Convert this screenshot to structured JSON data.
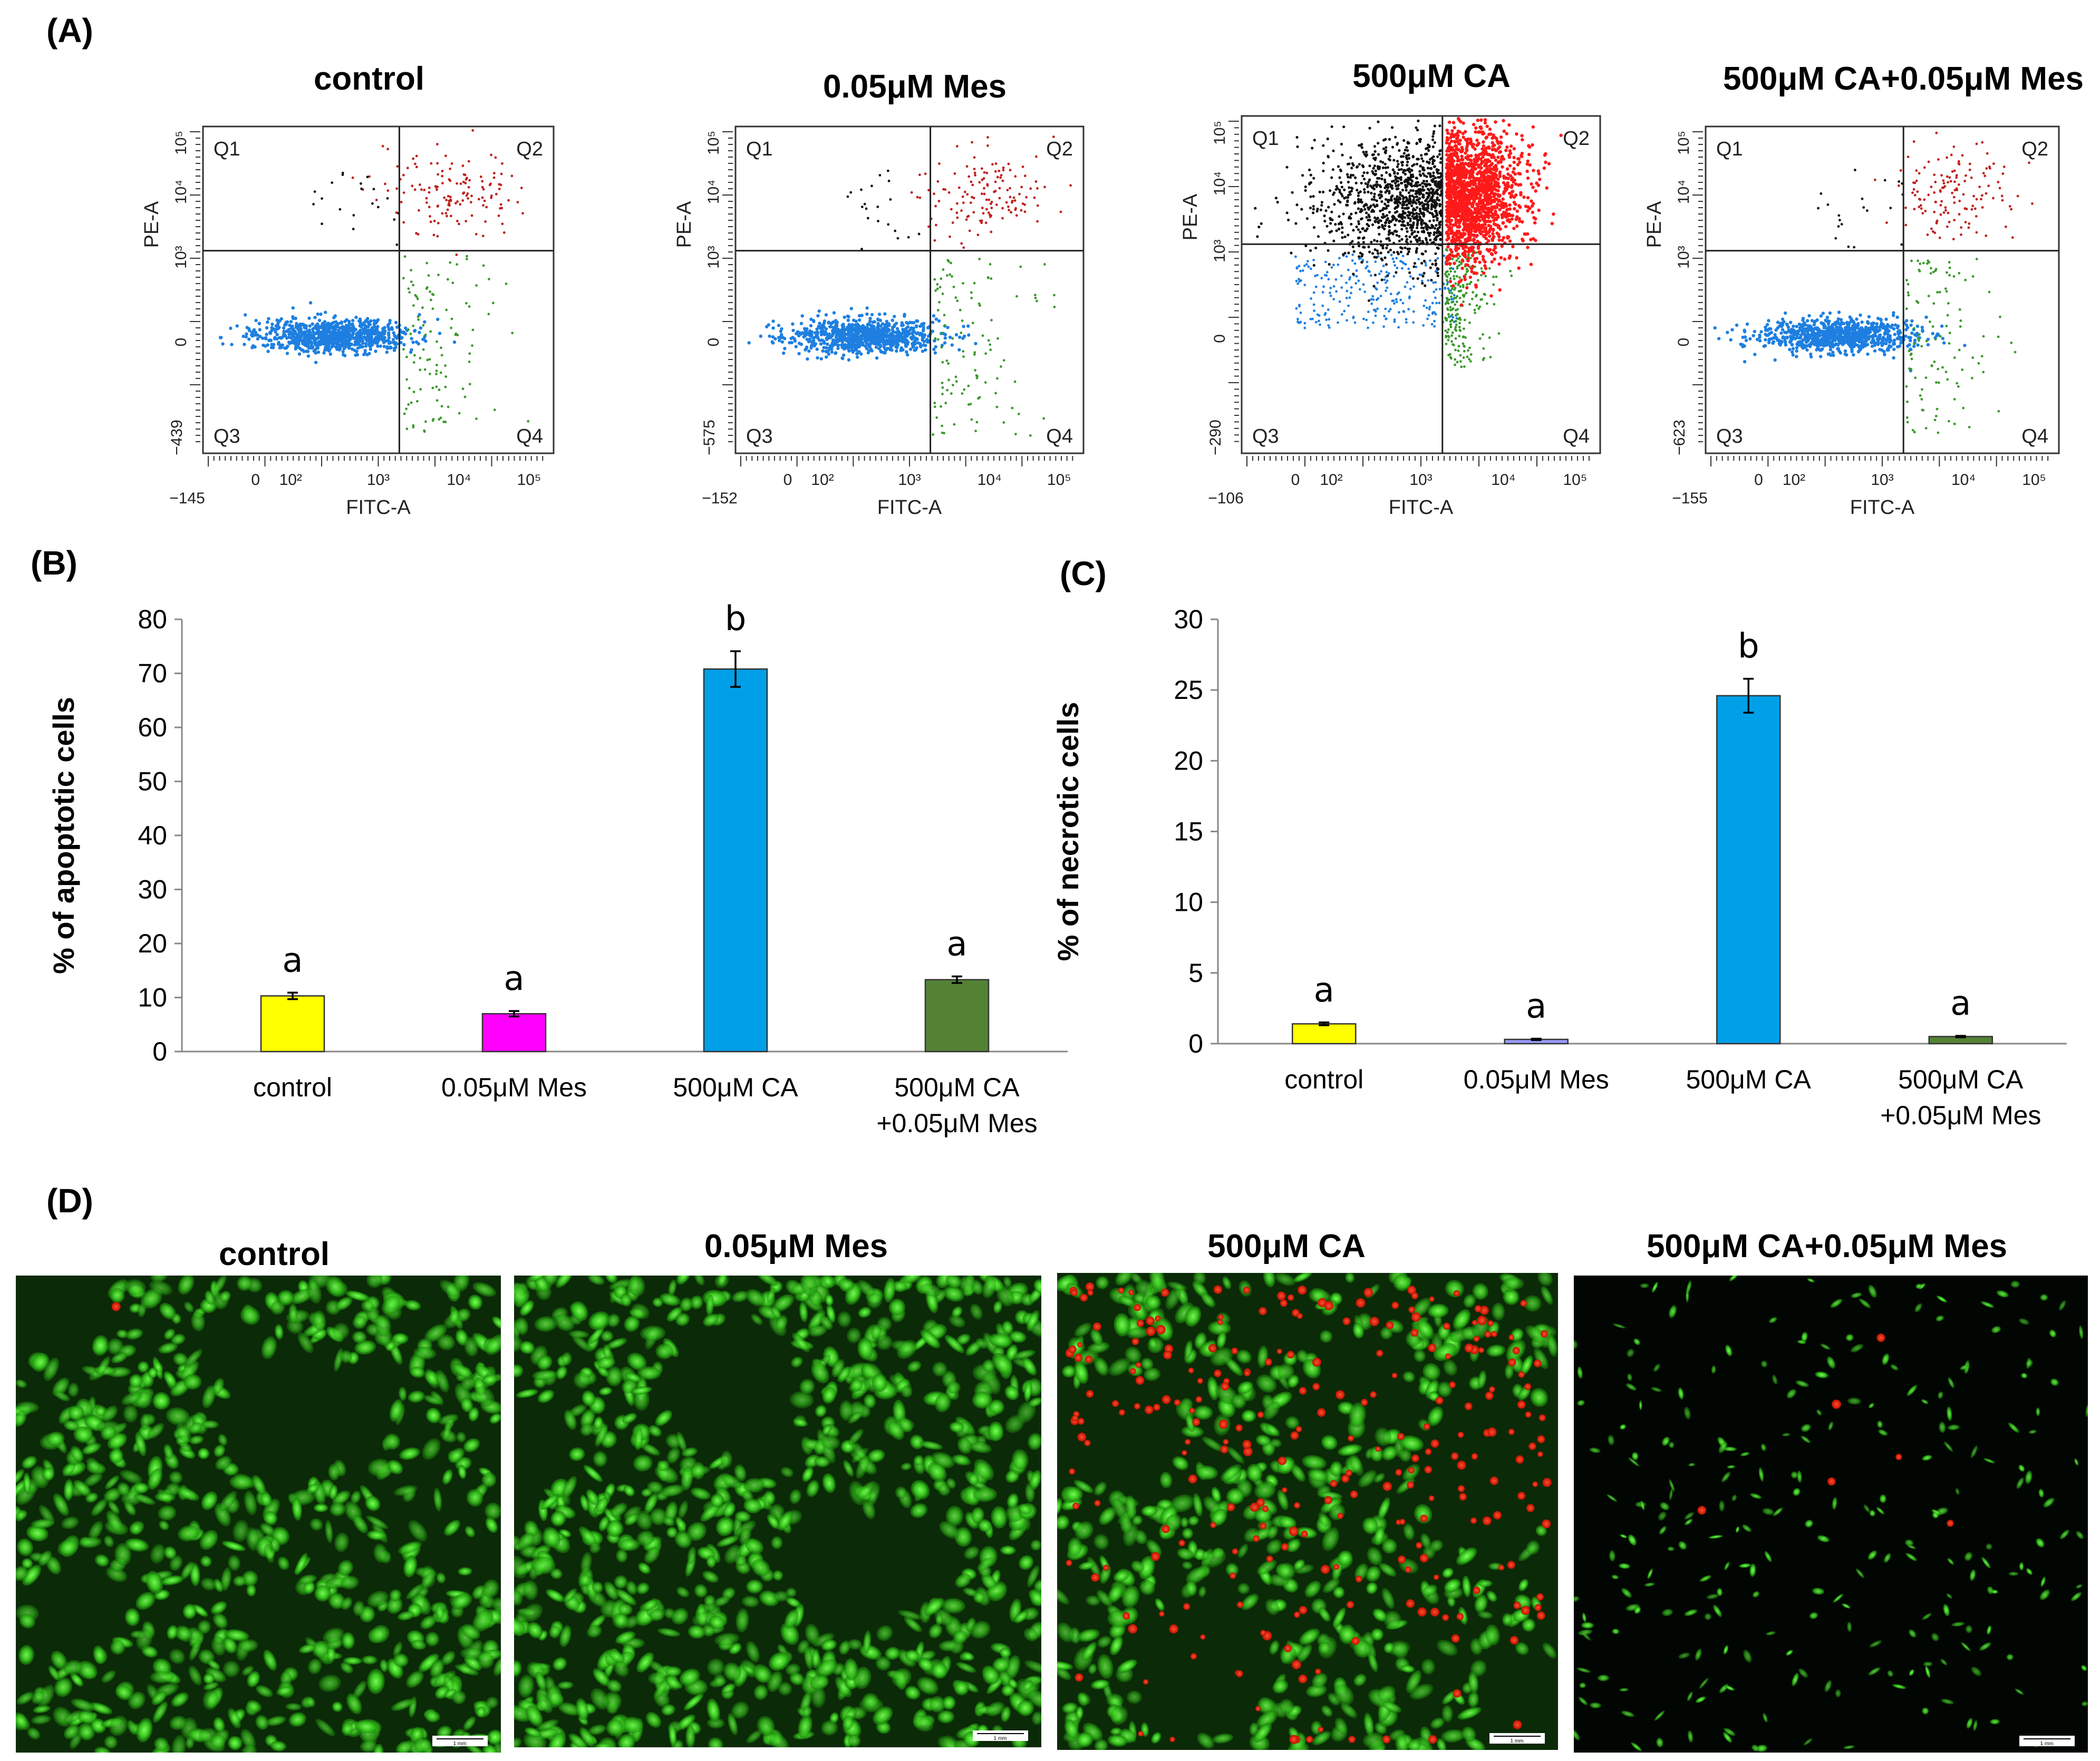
{
  "panels": {
    "A": "(A)",
    "B": "(B)",
    "C": "(C)",
    "D": "(D)"
  },
  "groups": [
    "control",
    "0.05μM Mes",
    "500μM CA",
    "500μM CA+0.05μM Mes"
  ],
  "flow_plots": [
    {
      "title": "control",
      "x_min_label": "−145",
      "y_min_label": "−439",
      "apoptosis_level": "low"
    },
    {
      "title": "0.05μM Mes",
      "x_min_label": "−152",
      "y_min_label": "−575",
      "apoptosis_level": "low"
    },
    {
      "title": "500μM CA",
      "x_min_label": "−106",
      "y_min_label": "−290",
      "apoptosis_level": "high"
    },
    {
      "title": "500μM CA+0.05μM Mes",
      "x_min_label": "−155",
      "y_min_label": "−623",
      "apoptosis_level": "low"
    }
  ],
  "flow_common": {
    "xlabel": "FITC-A",
    "ylabel": "PE-A",
    "quadrants": [
      "Q1",
      "Q2",
      "Q3",
      "Q4"
    ],
    "x_ticks": [
      "0",
      "10²",
      "10³",
      "10⁴",
      "10⁵"
    ],
    "y_ticks": [
      "0",
      "10³",
      "10⁴",
      "10⁵"
    ],
    "colors": {
      "q1": "#111111",
      "q2": "#c0201e",
      "q2_high": "#ff1a1a",
      "q3": "#1e7fe0",
      "q4": "#3a9a2a"
    }
  },
  "chart_data": [
    {
      "type": "bar",
      "panel": "B",
      "categories": [
        "control",
        "0.05μM Mes",
        "500μM CA",
        "500μM CA\n+0.05μM Mes"
      ],
      "category_lines": [
        [
          "control"
        ],
        [
          "0.05μM Mes"
        ],
        [
          "500μM CA"
        ],
        [
          "500μM CA",
          "+0.05μM Mes"
        ]
      ],
      "values": [
        10.3,
        7.0,
        70.8,
        13.3
      ],
      "errors": [
        0.6,
        0.5,
        3.3,
        0.6
      ],
      "letters": [
        "a",
        "a",
        "b",
        "a"
      ],
      "colors": [
        "#ffff00",
        "#ff00ff",
        "#00a0e8",
        "#548235"
      ],
      "ylabel": "% of apoptotic cells",
      "ylim": [
        0,
        80
      ],
      "yticks": [
        0,
        10,
        20,
        30,
        40,
        50,
        60,
        70,
        80
      ]
    },
    {
      "type": "bar",
      "panel": "C",
      "categories": [
        "control",
        "0.05μM Mes",
        "500μM CA",
        "500μM CA\n+0.05μM Mes"
      ],
      "category_lines": [
        [
          "control"
        ],
        [
          "0.05μM Mes"
        ],
        [
          "500μM CA"
        ],
        [
          "500μM CA",
          "+0.05μM Mes"
        ]
      ],
      "values": [
        1.4,
        0.3,
        24.6,
        0.5
      ],
      "errors": [
        0.1,
        0.05,
        1.2,
        0.05
      ],
      "letters": [
        "a",
        "a",
        "b",
        "a"
      ],
      "colors": [
        "#ffff00",
        "#9999ff",
        "#00a0e8",
        "#548235"
      ],
      "ylabel": "% of necrotic cells",
      "ylim": [
        0,
        30
      ],
      "yticks": [
        0,
        5,
        10,
        15,
        20,
        25,
        30
      ]
    }
  ],
  "micrographs": [
    {
      "title": "control",
      "scale_label": "1 mm",
      "dead_cell_density": "very low"
    },
    {
      "title": "0.05μM Mes",
      "scale_label": "1 mm",
      "dead_cell_density": "none"
    },
    {
      "title": "500μM CA",
      "scale_label": "1 mm",
      "dead_cell_density": "high"
    },
    {
      "title": "500μM CA+0.05μM Mes",
      "scale_label": "1 mm",
      "dead_cell_density": "low"
    }
  ]
}
